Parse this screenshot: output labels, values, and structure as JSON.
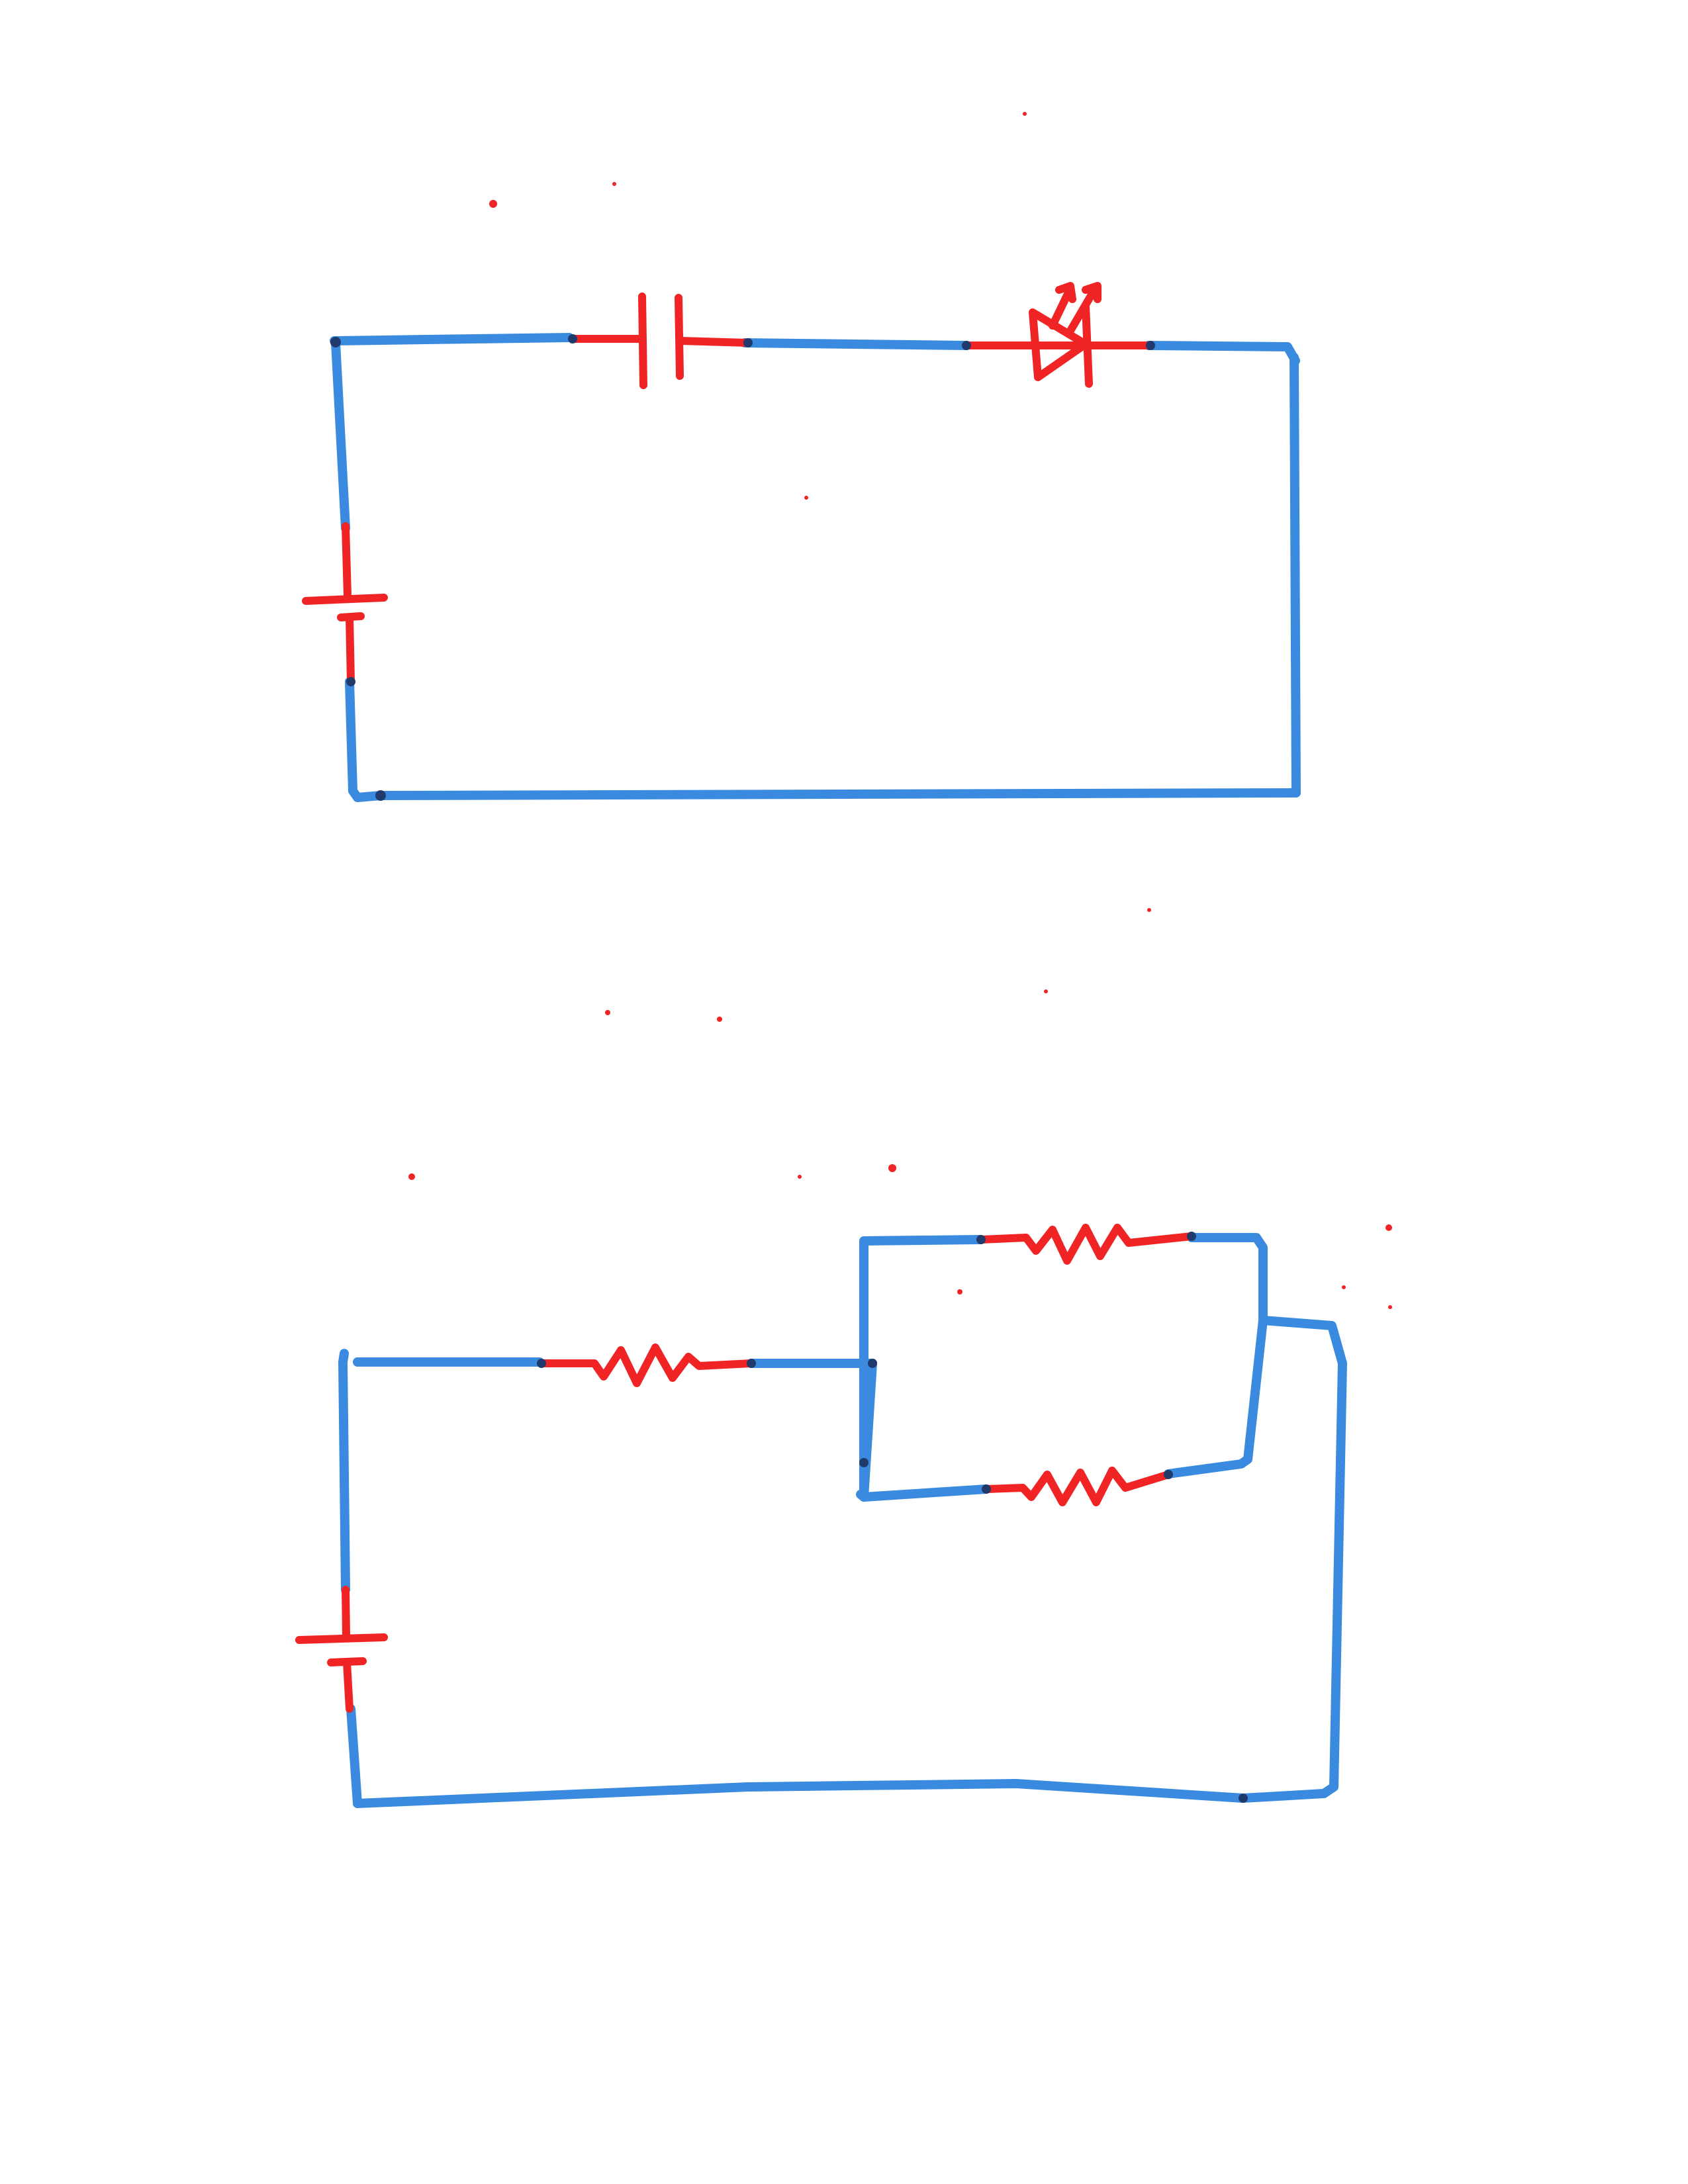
{
  "colors": {
    "wire": "#3a8be0",
    "component": "#f02424",
    "paper": "#ffffff",
    "joint": "#1f3a6b"
  },
  "circuits": [
    {
      "kind": "series",
      "components": [
        "capacitor-icon",
        "led-icon",
        "battery-icon"
      ]
    },
    {
      "kind": "series-parallel",
      "components": [
        "resistor-icon",
        "resistor-icon",
        "resistor-icon",
        "battery-icon"
      ]
    }
  ]
}
